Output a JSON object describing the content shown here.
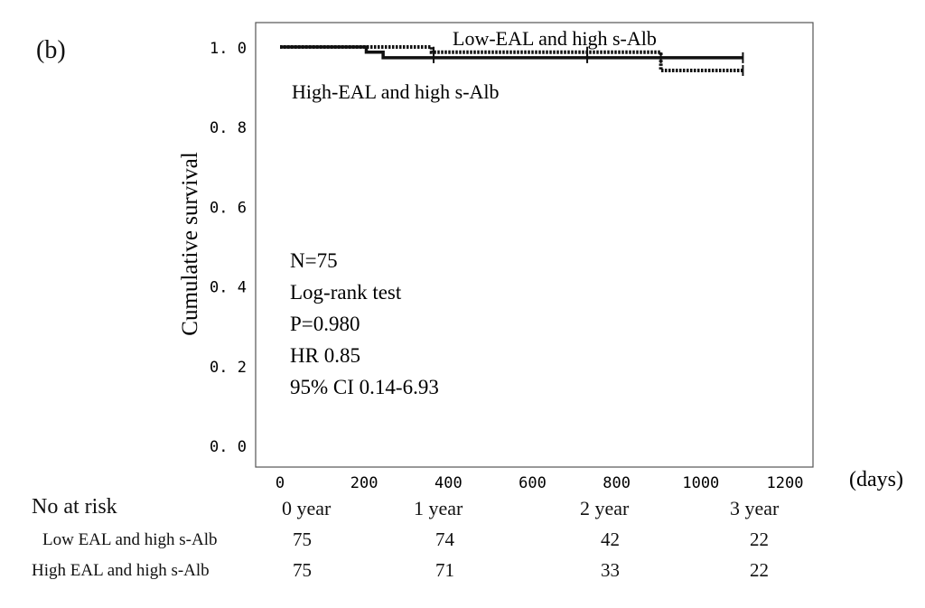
{
  "panel_label": "(b)",
  "chart_data": {
    "type": "line",
    "subtype": "kaplan-meier",
    "xlabel": "(days)",
    "ylabel": "Cumulative survival",
    "xlim": [
      0,
      1200
    ],
    "ylim": [
      0,
      1.0
    ],
    "x_ticks": [
      "0",
      "200",
      "400",
      "600",
      "800",
      "1000",
      "1200"
    ],
    "x_tick_values": [
      0,
      200,
      400,
      600,
      800,
      1000,
      1200
    ],
    "y_ticks": [
      "0. 0",
      "0. 2",
      "0. 4",
      "0. 6",
      "0. 8",
      "1. 0"
    ],
    "y_tick_values": [
      0,
      0.2,
      0.4,
      0.6,
      0.8,
      1.0
    ],
    "grid": false,
    "series": [
      {
        "name": "Low-EAL and high s-Alb",
        "line_style": "dashed",
        "color": "#111111",
        "steps": [
          [
            0,
            1.0
          ],
          [
            360,
            0.987
          ],
          [
            905,
            0.941
          ],
          [
            1100,
            0.941
          ]
        ],
        "censored": [
          [
            365,
            0.987
          ],
          [
            730,
            0.987
          ],
          [
            1100,
            0.941
          ]
        ]
      },
      {
        "name": "High-EAL and high s-Alb",
        "line_style": "solid",
        "color": "#111111",
        "steps": [
          [
            0,
            1.0
          ],
          [
            205,
            0.987
          ],
          [
            245,
            0.973
          ],
          [
            1100,
            0.973
          ]
        ],
        "censored": [
          [
            365,
            0.973
          ],
          [
            730,
            0.973
          ],
          [
            905,
            0.973
          ],
          [
            1100,
            0.973
          ]
        ]
      }
    ],
    "annotations": [
      "N=75",
      "Log-rank test",
      "P=0.980",
      "HR 0.85",
      "95% CI 0.14-6.93"
    ]
  },
  "risk_table": {
    "title": "No at risk",
    "columns": [
      "0 year",
      "1 year",
      "2 year",
      "3 year"
    ],
    "rows": [
      {
        "label": "Low EAL and high s-Alb",
        "values": [
          "75",
          "74",
          "42",
          "22"
        ]
      },
      {
        "label": "High EAL and high s-Alb",
        "values": [
          "75",
          "71",
          "33",
          "22"
        ]
      }
    ]
  }
}
